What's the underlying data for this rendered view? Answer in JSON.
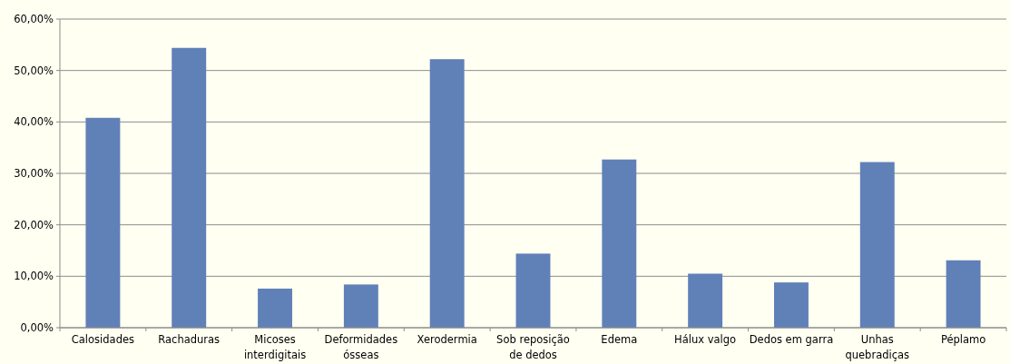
{
  "chart_data": {
    "type": "bar",
    "categories": [
      "Calosidades",
      "Rachaduras",
      "Micoses interdigitais",
      "Deformidades ósseas",
      "Xerodermia",
      "Sob reposição de dedos",
      "Edema",
      "Hálux valgo",
      "Dedos em garra",
      "Unhas quebradiças",
      "Péplamo"
    ],
    "values": [
      40.8,
      54.4,
      7.6,
      8.4,
      52.2,
      14.4,
      32.7,
      10.5,
      8.8,
      32.2,
      13.1
    ],
    "color": "#6080b8",
    "ylim": [
      0,
      60
    ],
    "yticks": [
      {
        "value": 0,
        "label": "0,00%"
      },
      {
        "value": 10,
        "label": "10,00%"
      },
      {
        "value": 20,
        "label": "20,00%"
      },
      {
        "value": 30,
        "label": "30,00%"
      },
      {
        "value": 40,
        "label": "40,00%"
      },
      {
        "value": 50,
        "label": "50,00%"
      },
      {
        "value": 60,
        "label": "60,00%"
      }
    ],
    "grid": "y"
  }
}
